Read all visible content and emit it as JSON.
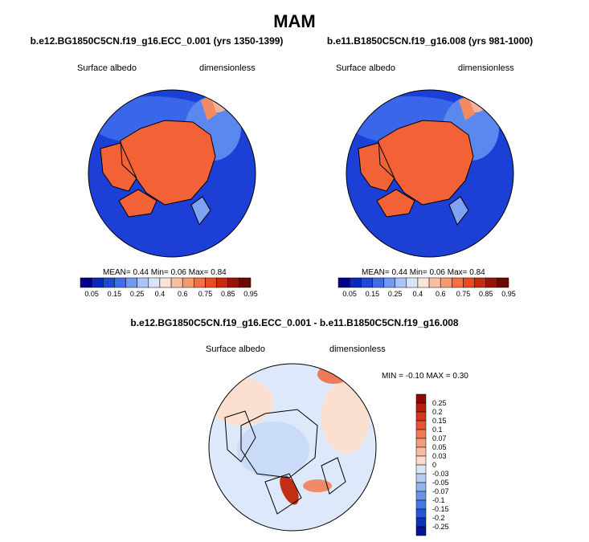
{
  "title": "MAM",
  "panels": [
    {
      "case": "b.e12.BG1850C5CN.f19_g16.ECC_0.001 (yrs 1350-1399)",
      "left_label": "Surface albedo",
      "right_label": "dimensionless",
      "mean_label": "MEAN=",
      "mean_value": "0.44",
      "min_label": "Min=",
      "min_value": "0.06",
      "max_label": "Max=",
      "max_value": "0.84"
    },
    {
      "case": "b.e11.B1850C5CN.f19_g16.008 (yrs 981-1000)",
      "left_label": "Surface albedo",
      "right_label": "dimensionless",
      "mean_label": "MEAN=",
      "mean_value": "0.44",
      "min_label": "Min=",
      "min_value": "0.06",
      "max_label": "Max=",
      "max_value": "0.84"
    }
  ],
  "diff": {
    "case": "b.e12.BG1850C5CN.f19_g16.ECC_0.001 - b.e11.B1850C5CN.f19_g16.008",
    "left_label": "Surface albedo",
    "right_label": "dimensionless",
    "min_label": "MIN =",
    "min_value": "-0.10",
    "max_label": "MAX =",
    "max_value": "0.30"
  },
  "colors": {
    "ocean_deep": "#1c3fd6",
    "ocean": "#2f5ee8",
    "ocean_light": "#5b87f0",
    "pale_blue": "#c7d9f7",
    "ice": "#f26236",
    "ice_dark": "#e0401c",
    "land_line": "#000000",
    "diff_bg": "#dde9fb"
  },
  "chart_data": [
    {
      "type": "heatmap",
      "title": "Surface albedo",
      "case": "b.e12.BG1850C5CN.f19_g16.ECC_0.001 (yrs 1350-1399)",
      "units": "dimensionless",
      "mean": 0.44,
      "min": 0.06,
      "max": 0.84,
      "colorbar_ticks": [
        "0.05",
        "0.15",
        "0.25",
        "0.4",
        "0.6",
        "0.75",
        "0.85",
        "0.95"
      ],
      "colorbar_colors": [
        "#05008a",
        "#0b28b8",
        "#1e49d6",
        "#3e6ee8",
        "#7499f0",
        "#a9c3f6",
        "#d8e4fa",
        "#fbe4d6",
        "#f9bfa2",
        "#f6996f",
        "#f36f45",
        "#ea4b24",
        "#c72a10",
        "#981308",
        "#6a0a03"
      ]
    },
    {
      "type": "heatmap",
      "title": "Surface albedo",
      "case": "b.e11.B1850C5CN.f19_g16.008 (yrs 981-1000)",
      "units": "dimensionless",
      "mean": 0.44,
      "min": 0.06,
      "max": 0.84,
      "colorbar_ticks": [
        "0.05",
        "0.15",
        "0.25",
        "0.4",
        "0.6",
        "0.75",
        "0.85",
        "0.95"
      ],
      "colorbar_colors": [
        "#05008a",
        "#0b28b8",
        "#1e49d6",
        "#3e6ee8",
        "#7499f0",
        "#a9c3f6",
        "#d8e4fa",
        "#fbe4d6",
        "#f9bfa2",
        "#f6996f",
        "#f36f45",
        "#ea4b24",
        "#c72a10",
        "#981308",
        "#6a0a03"
      ]
    },
    {
      "type": "heatmap",
      "title": "Surface albedo",
      "case": "b.e12.BG1850C5CN.f19_g16.ECC_0.001 - b.e11.B1850C5CN.f19_g16.008",
      "units": "dimensionless",
      "min": -0.1,
      "max": 0.3,
      "colorbar_ticks": [
        "0.25",
        "0.2",
        "0.15",
        "0.1",
        "0.07",
        "0.05",
        "0.03",
        "0",
        "-0.03",
        "-0.05",
        "-0.07",
        "-0.1",
        "-0.15",
        "-0.2",
        "-0.25"
      ],
      "colorbar_colors": [
        "#8a0a05",
        "#b51d0e",
        "#d5371c",
        "#e65534",
        "#ef7a57",
        "#f39c7d",
        "#f7bda4",
        "#fbdccc",
        "#dae6f8",
        "#b7cdf3",
        "#93b3ee",
        "#6b94e8",
        "#4677e0",
        "#2357d4",
        "#0d34b7",
        "#05148e"
      ]
    }
  ]
}
